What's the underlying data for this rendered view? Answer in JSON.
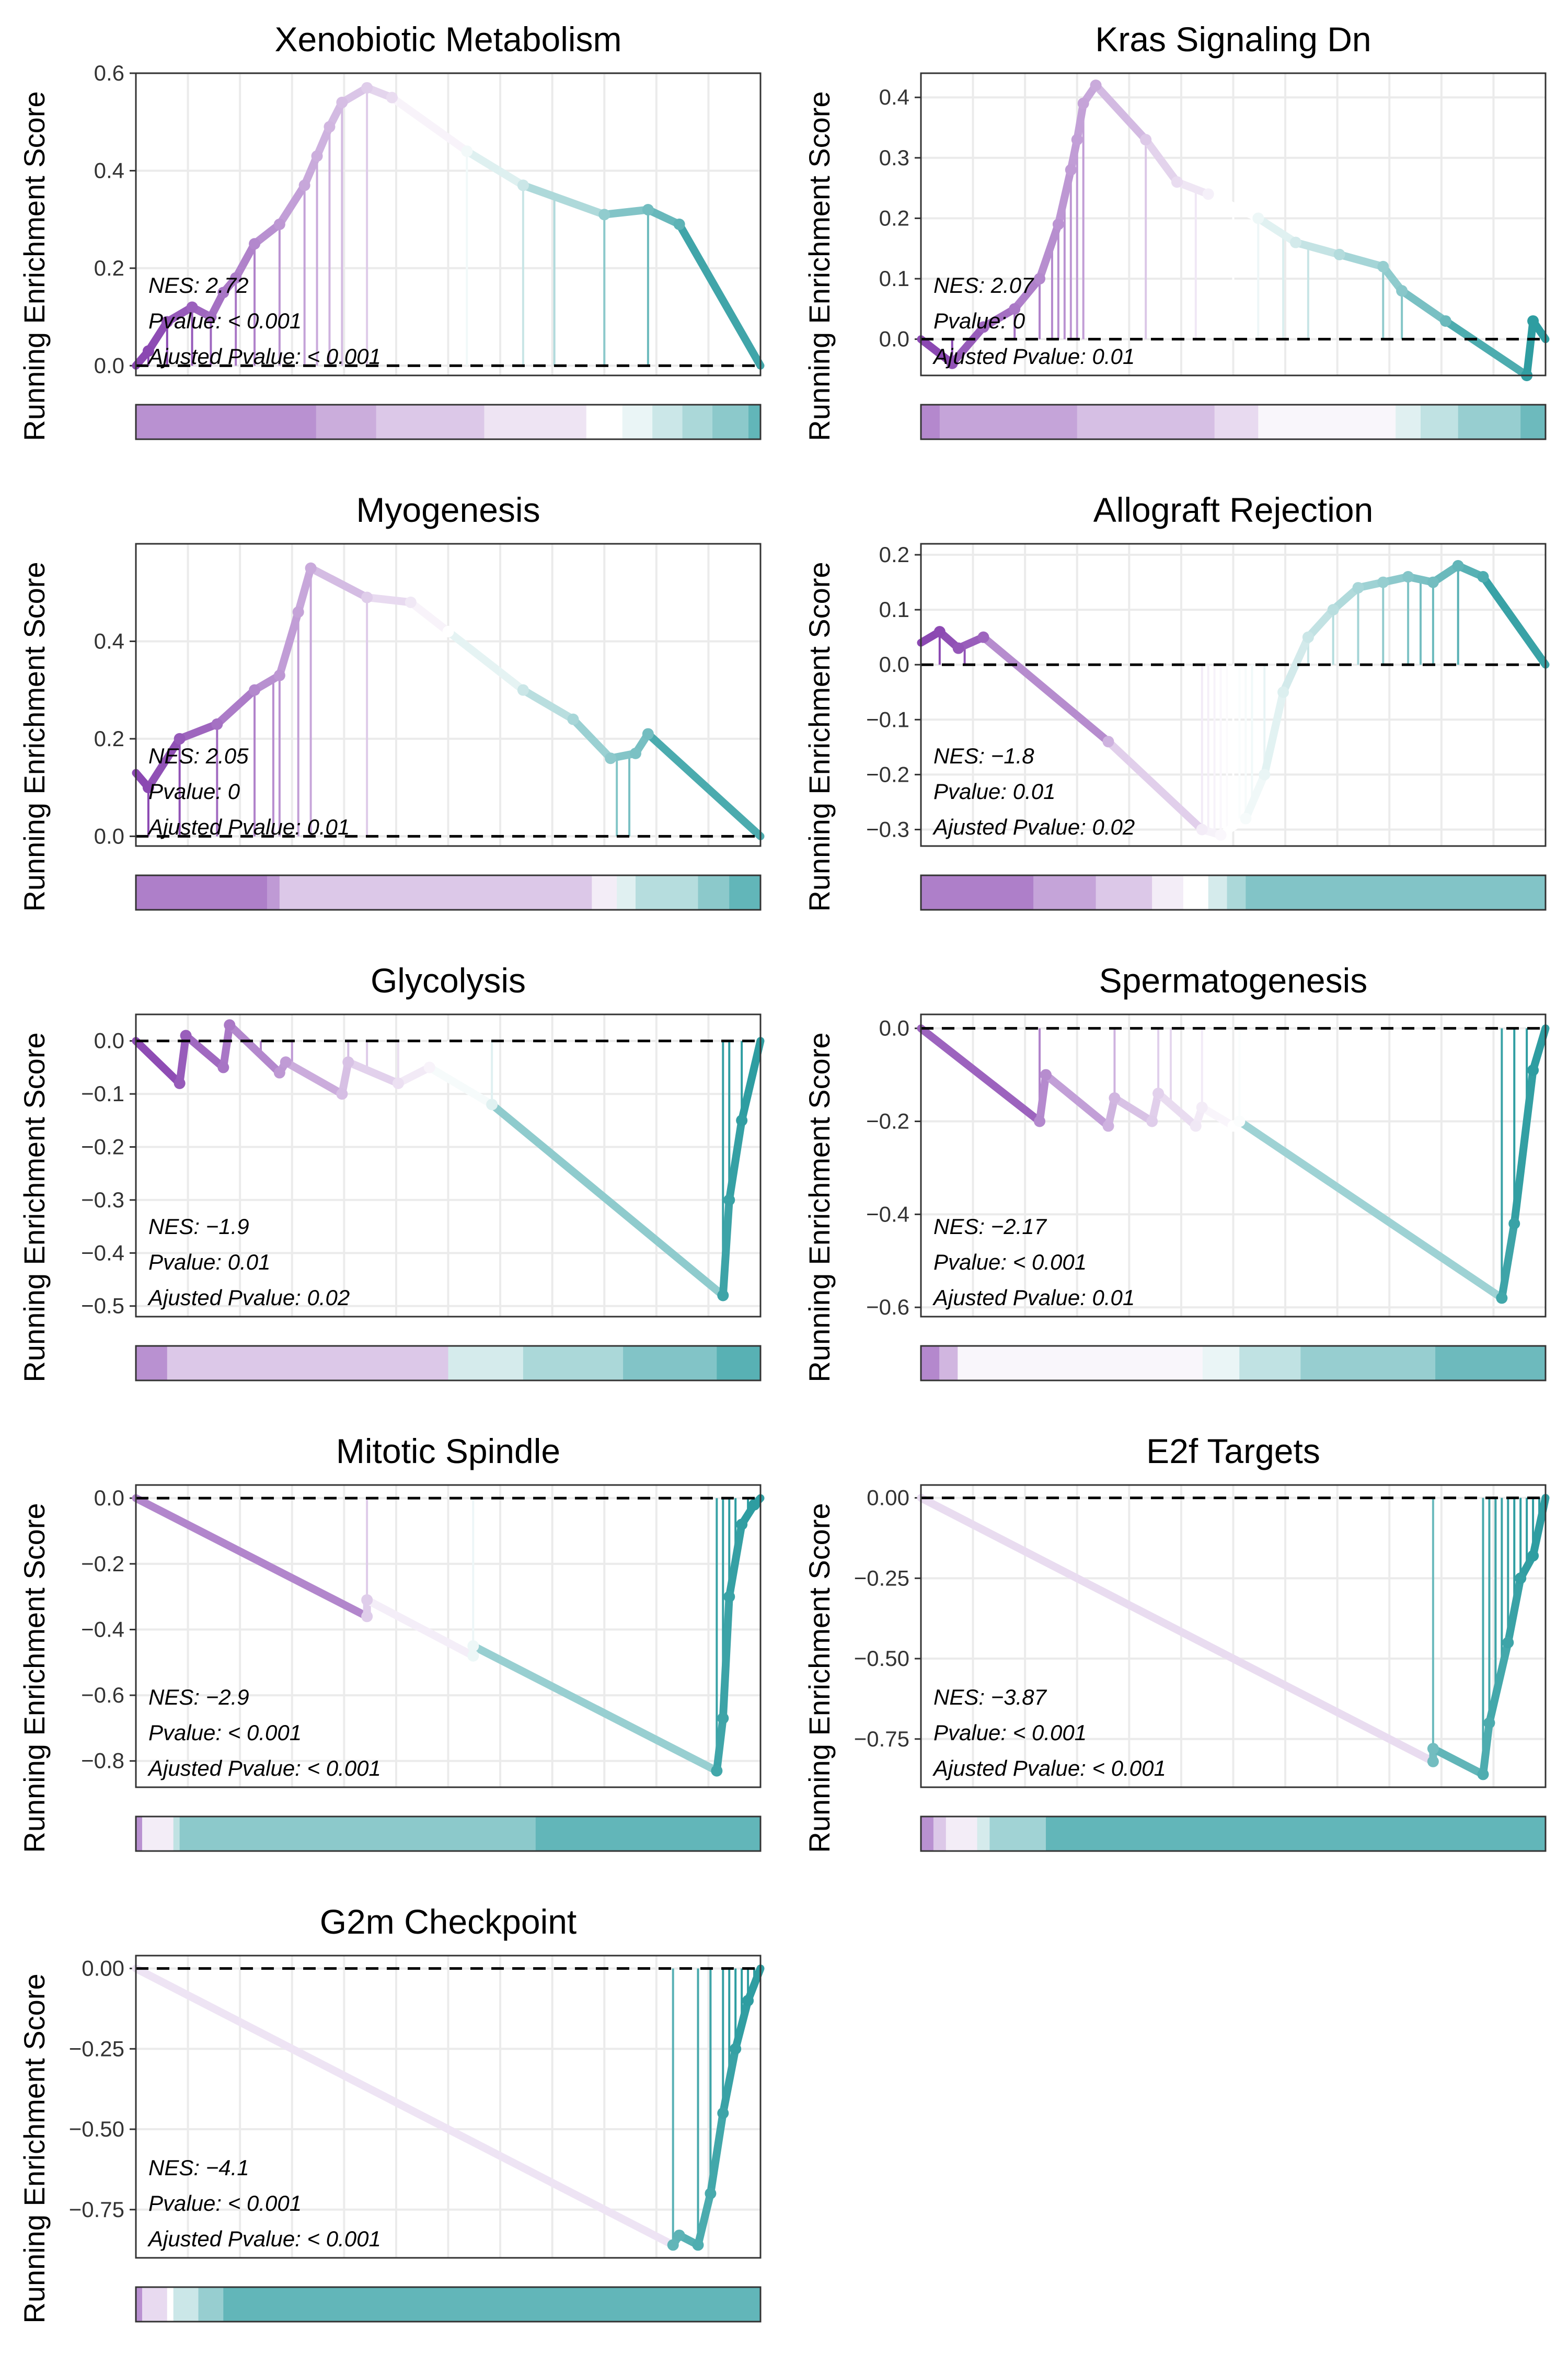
{
  "colors": {
    "positive": "#8B48B2",
    "neutral": "#FFFFFF",
    "negative": "#2E9DA1",
    "panel_border": "#333333",
    "grid": "#EBEBEB",
    "zero_line": "#000000"
  },
  "chart_data": [
    {
      "type": "line",
      "title": "Xenobiotic Metabolism",
      "ylabel": "Running Enrichment Score",
      "ylim": [
        -0.02,
        0.6
      ],
      "yticks": [
        "0.0",
        "0.2",
        "0.4",
        "0.6"
      ],
      "ytick_values": [
        0.0,
        0.2,
        0.4,
        0.6
      ],
      "stats": {
        "nes": "NES: 2.72",
        "pvalue": "Pvalue: < 0.001",
        "adj_pvalue": "Ajusted Pvalue: < 0.001"
      },
      "series": [
        {
          "x": [
            0,
            0.02,
            0.05,
            0.09,
            0.12,
            0.14,
            0.16,
            0.19,
            0.23,
            0.27,
            0.29,
            0.31,
            0.33,
            0.37,
            0.41,
            0.53,
            0.62,
            0.75,
            0.82,
            0.87,
            1.0
          ],
          "y": [
            0.0,
            0.03,
            0.09,
            0.12,
            0.1,
            0.15,
            0.18,
            0.25,
            0.29,
            0.37,
            0.43,
            0.49,
            0.54,
            0.57,
            0.55,
            0.44,
            0.37,
            0.31,
            0.32,
            0.29,
            0.0
          ]
        }
      ],
      "hits": [
        0.02,
        0.05,
        0.09,
        0.12,
        0.16,
        0.19,
        0.23,
        0.27,
        0.29,
        0.31,
        0.33,
        0.37,
        0.53,
        0.62,
        0.67,
        0.75,
        0.82
      ],
      "heatmap": [
        0.6,
        0.6,
        0.6,
        0.45,
        0.3,
        0.3,
        0.15,
        0.15,
        0.0,
        -0.1,
        -0.25,
        -0.4,
        -0.55,
        -0.75
      ],
      "heatmap_widths": [
        0.15,
        0.15,
        0.0,
        0.1,
        0.08,
        0.1,
        0.08,
        0.09,
        0.06,
        0.05,
        0.05,
        0.05,
        0.06,
        0.02
      ]
    },
    {
      "type": "line",
      "title": "Kras Signaling Dn",
      "ylabel": "Running Enrichment Score",
      "ylim": [
        -0.06,
        0.44
      ],
      "yticks": [
        "0.0",
        "0.1",
        "0.2",
        "0.3",
        "0.4"
      ],
      "ytick_values": [
        0.0,
        0.1,
        0.2,
        0.3,
        0.4
      ],
      "stats": {
        "nes": "NES: 2.07",
        "pvalue": "Pvalue: 0",
        "adj_pvalue": "Ajusted Pvalue: 0.01"
      },
      "series": [
        {
          "x": [
            0,
            0.05,
            0.1,
            0.15,
            0.19,
            0.22,
            0.24,
            0.25,
            0.26,
            0.28,
            0.36,
            0.41,
            0.46,
            0.54,
            0.6,
            0.67,
            0.74,
            0.77,
            0.84,
            0.97,
            0.98,
            1.0
          ],
          "y": [
            0.0,
            -0.04,
            0.02,
            0.05,
            0.1,
            0.19,
            0.28,
            0.33,
            0.39,
            0.42,
            0.33,
            0.26,
            0.24,
            0.2,
            0.16,
            0.14,
            0.12,
            0.08,
            0.03,
            -0.06,
            0.03,
            0.0
          ]
        }
      ],
      "hits": [
        0.05,
        0.15,
        0.19,
        0.21,
        0.22,
        0.23,
        0.24,
        0.25,
        0.26,
        0.36,
        0.44,
        0.5,
        0.54,
        0.58,
        0.62,
        0.74,
        0.77,
        0.98
      ],
      "heatmap": [
        0.65,
        0.5,
        0.35,
        0.2,
        0.05,
        -0.15,
        -0.3,
        -0.5,
        -0.7
      ],
      "heatmap_widths": [
        0.03,
        0.22,
        0.22,
        0.07,
        0.22,
        0.04,
        0.06,
        0.1,
        0.04
      ]
    },
    {
      "type": "line",
      "title": "Myogenesis",
      "ylabel": "Running Enrichment Score",
      "ylim": [
        -0.02,
        0.6
      ],
      "yticks": [
        "0.0",
        "0.2",
        "0.4"
      ],
      "ytick_values": [
        0.0,
        0.2,
        0.4
      ],
      "stats": {
        "nes": "NES: 2.05",
        "pvalue": "Pvalue: 0",
        "adj_pvalue": "Ajusted Pvalue: 0.01"
      },
      "series": [
        {
          "x": [
            0,
            0.02,
            0.07,
            0.13,
            0.19,
            0.23,
            0.26,
            0.28,
            0.37,
            0.44,
            0.5,
            0.62,
            0.7,
            0.76,
            0.8,
            0.82,
            1.0
          ],
          "y": [
            0.13,
            0.1,
            0.2,
            0.23,
            0.3,
            0.33,
            0.46,
            0.55,
            0.49,
            0.48,
            0.42,
            0.3,
            0.24,
            0.16,
            0.17,
            0.21,
            0.0
          ]
        }
      ],
      "hits": [
        0.02,
        0.07,
        0.13,
        0.19,
        0.22,
        0.23,
        0.26,
        0.28,
        0.37,
        0.77,
        0.79
      ],
      "heatmap": [
        0.7,
        0.55,
        0.3,
        0.1,
        -0.15,
        -0.35,
        -0.55,
        -0.75
      ],
      "heatmap_widths": [
        0.21,
        0.02,
        0.5,
        0.04,
        0.03,
        0.1,
        0.05,
        0.05
      ]
    },
    {
      "type": "line",
      "title": "Allograft Rejection",
      "ylabel": "Running Enrichment Score",
      "ylim": [
        -0.33,
        0.22
      ],
      "yticks": [
        "0.2",
        "0.1",
        "0.0",
        "−0.1",
        "−0.2",
        "−0.3"
      ],
      "ytick_values": [
        0.2,
        0.1,
        0.0,
        -0.1,
        -0.2,
        -0.3
      ],
      "stats": {
        "nes": "NES: −1.8",
        "pvalue": "Pvalue: 0.01",
        "adj_pvalue": "Ajusted Pvalue: 0.02"
      },
      "series": [
        {
          "x": [
            0,
            0.03,
            0.06,
            0.1,
            0.3,
            0.45,
            0.48,
            0.52,
            0.55,
            0.58,
            0.62,
            0.66,
            0.7,
            0.74,
            0.78,
            0.82,
            0.86,
            0.9,
            1.0
          ],
          "y": [
            0.04,
            0.06,
            0.03,
            0.05,
            -0.14,
            -0.3,
            -0.31,
            -0.28,
            -0.2,
            -0.05,
            0.05,
            0.1,
            0.14,
            0.15,
            0.16,
            0.15,
            0.18,
            0.16,
            0.0
          ]
        }
      ],
      "hits": [
        0.03,
        0.07,
        0.45,
        0.46,
        0.47,
        0.48,
        0.49,
        0.5,
        0.51,
        0.52,
        0.53,
        0.55,
        0.62,
        0.66,
        0.7,
        0.74,
        0.78,
        0.8,
        0.82,
        0.86
      ],
      "heatmap": [
        0.7,
        0.5,
        0.3,
        0.1,
        0.0,
        -0.2,
        -0.4,
        -0.6
      ],
      "heatmap_widths": [
        0.18,
        0.1,
        0.09,
        0.05,
        0.04,
        0.03,
        0.03,
        0.48
      ]
    },
    {
      "type": "line",
      "title": "Glycolysis",
      "ylabel": "Running Enrichment Score",
      "ylim": [
        -0.52,
        0.05
      ],
      "yticks": [
        "0.0",
        "−0.1",
        "−0.2",
        "−0.3",
        "−0.4",
        "−0.5"
      ],
      "ytick_values": [
        0.0,
        -0.1,
        -0.2,
        -0.3,
        -0.4,
        -0.5
      ],
      "stats": {
        "nes": "NES: −1.9",
        "pvalue": "Pvalue: 0.01",
        "adj_pvalue": "Ajusted Pvalue: 0.02"
      },
      "series": [
        {
          "x": [
            0,
            0.07,
            0.08,
            0.14,
            0.15,
            0.23,
            0.24,
            0.33,
            0.34,
            0.42,
            0.47,
            0.57,
            0.94,
            0.95,
            0.97,
            1.0
          ],
          "y": [
            0.0,
            -0.08,
            0.01,
            -0.05,
            0.03,
            -0.06,
            -0.04,
            -0.1,
            -0.04,
            -0.08,
            -0.05,
            -0.12,
            -0.48,
            -0.3,
            -0.15,
            0.0
          ]
        }
      ],
      "hits": [
        0.08,
        0.15,
        0.2,
        0.25,
        0.34,
        0.37,
        0.42,
        0.5,
        0.57,
        0.94,
        0.95,
        0.97,
        1.0
      ],
      "heatmap": [
        0.6,
        0.3,
        0.05,
        -0.2,
        -0.4,
        -0.6,
        -0.8
      ],
      "heatmap_widths": [
        0.05,
        0.45,
        0.0,
        0.12,
        0.16,
        0.15,
        0.07
      ]
    },
    {
      "type": "line",
      "title": "Spermatogenesis",
      "ylabel": "Running Enrichment Score",
      "ylim": [
        -0.62,
        0.03
      ],
      "yticks": [
        "0.0",
        "−0.2",
        "−0.4",
        "−0.6"
      ],
      "ytick_values": [
        0.0,
        -0.2,
        -0.4,
        -0.6
      ],
      "stats": {
        "nes": "NES: −2.17",
        "pvalue": "Pvalue: < 0.001",
        "adj_pvalue": "Ajusted Pvalue: 0.01"
      },
      "series": [
        {
          "x": [
            0,
            0.19,
            0.2,
            0.3,
            0.31,
            0.37,
            0.38,
            0.44,
            0.45,
            0.5,
            0.51,
            0.93,
            0.95,
            0.98,
            1.0
          ],
          "y": [
            0.0,
            -0.2,
            -0.1,
            -0.21,
            -0.15,
            -0.2,
            -0.14,
            -0.21,
            -0.17,
            -0.21,
            -0.2,
            -0.58,
            -0.42,
            -0.09,
            0.0
          ]
        }
      ],
      "hits": [
        0.19,
        0.31,
        0.38,
        0.4,
        0.45,
        0.51,
        0.93,
        0.95,
        0.97,
        1.0
      ],
      "heatmap": [
        0.65,
        0.4,
        0.05,
        -0.1,
        -0.3,
        -0.5,
        -0.7
      ],
      "heatmap_widths": [
        0.03,
        0.03,
        0.4,
        0.06,
        0.1,
        0.22,
        0.18
      ]
    },
    {
      "type": "line",
      "title": "Mitotic Spindle",
      "ylabel": "Running Enrichment Score",
      "ylim": [
        -0.88,
        0.04
      ],
      "yticks": [
        "0.0",
        "−0.2",
        "−0.4",
        "−0.6",
        "−0.8"
      ],
      "ytick_values": [
        0.0,
        -0.2,
        -0.4,
        -0.6,
        -0.8
      ],
      "stats": {
        "nes": "NES: −2.9",
        "pvalue": "Pvalue: < 0.001",
        "adj_pvalue": "Ajusted Pvalue: < 0.001"
      },
      "series": [
        {
          "x": [
            0,
            0.37,
            0.37,
            0.54,
            0.54,
            0.93,
            0.94,
            0.95,
            0.97,
            0.99,
            1.0
          ],
          "y": [
            0.0,
            -0.36,
            -0.31,
            -0.48,
            -0.45,
            -0.83,
            -0.67,
            -0.3,
            -0.08,
            -0.02,
            0.0
          ]
        }
      ],
      "hits": [
        0.37,
        0.54,
        0.93,
        0.94,
        0.95,
        0.96,
        0.98,
        0.99,
        1.0
      ],
      "heatmap": [
        0.6,
        0.1,
        -0.3,
        -0.55,
        -0.75
      ],
      "heatmap_widths": [
        0.01,
        0.05,
        0.01,
        0.57,
        0.36
      ]
    },
    {
      "type": "line",
      "title": "E2f Targets",
      "ylabel": "Running Enrichment Score",
      "ylim": [
        -0.9,
        0.04
      ],
      "yticks": [
        "0.00",
        "−0.25",
        "−0.50",
        "−0.75"
      ],
      "ytick_values": [
        0.0,
        -0.25,
        -0.5,
        -0.75
      ],
      "stats": {
        "nes": "NES: −3.87",
        "pvalue": "Pvalue: < 0.001",
        "adj_pvalue": "Ajusted Pvalue: < 0.001"
      },
      "series": [
        {
          "x": [
            0,
            0.82,
            0.82,
            0.9,
            0.91,
            0.94,
            0.96,
            0.98,
            1.0
          ],
          "y": [
            0.0,
            -0.82,
            -0.78,
            -0.86,
            -0.7,
            -0.45,
            -0.25,
            -0.18,
            0.0
          ]
        }
      ],
      "hits": [
        0.82,
        0.9,
        0.91,
        0.92,
        0.93,
        0.94,
        0.95,
        0.96,
        0.97,
        0.98,
        0.99,
        1.0
      ],
      "heatmap": [
        0.6,
        0.3,
        0.1,
        -0.2,
        -0.45,
        -0.75
      ],
      "heatmap_widths": [
        0.02,
        0.02,
        0.05,
        0.02,
        0.09,
        0.8
      ]
    },
    {
      "type": "line",
      "title": "G2m Checkpoint",
      "ylabel": "Running Enrichment Score",
      "ylim": [
        -0.9,
        0.04
      ],
      "yticks": [
        "0.00",
        "−0.25",
        "−0.50",
        "−0.75"
      ],
      "ytick_values": [
        0.0,
        -0.25,
        -0.5,
        -0.75
      ],
      "stats": {
        "nes": "NES: −4.1",
        "pvalue": "Pvalue: < 0.001",
        "adj_pvalue": "Ajusted Pvalue: < 0.001"
      },
      "series": [
        {
          "x": [
            0,
            0.86,
            0.87,
            0.9,
            0.92,
            0.94,
            0.96,
            0.98,
            1.0
          ],
          "y": [
            0.0,
            -0.86,
            -0.83,
            -0.86,
            -0.7,
            -0.45,
            -0.25,
            -0.1,
            0.0
          ]
        }
      ],
      "hits": [
        0.86,
        0.9,
        0.92,
        0.94,
        0.95,
        0.96,
        0.97,
        0.98,
        0.99,
        1.0
      ],
      "heatmap": [
        0.6,
        0.2,
        0.0,
        -0.25,
        -0.5,
        -0.75
      ],
      "heatmap_widths": [
        0.01,
        0.04,
        0.01,
        0.04,
        0.04,
        0.86
      ]
    }
  ]
}
